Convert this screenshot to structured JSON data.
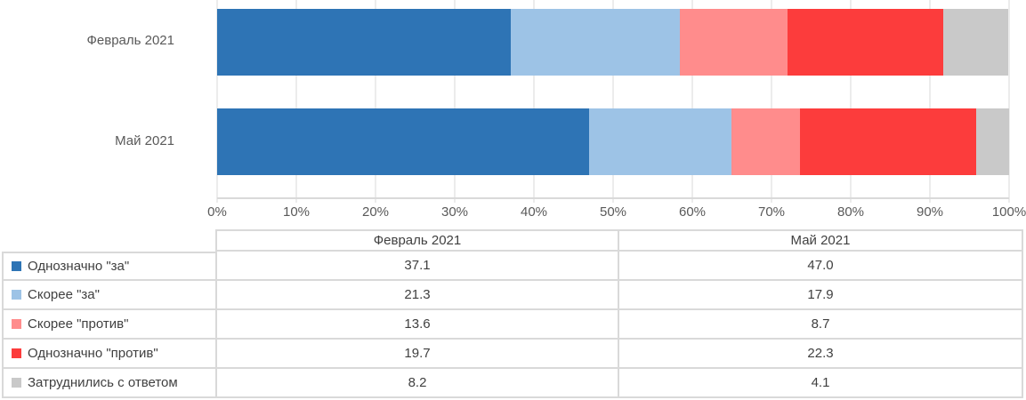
{
  "colors": {
    "background": "#ffffff",
    "grid": "#d9d9d9",
    "axis_text": "#595959",
    "table_text": "#404040",
    "table_border": "#d9d9d9"
  },
  "chart_data": {
    "type": "bar",
    "orientation": "horizontal",
    "stacked": true,
    "grid": true,
    "xlim": [
      0,
      100
    ],
    "x_ticks": [
      "0%",
      "10%",
      "20%",
      "30%",
      "40%",
      "50%",
      "60%",
      "70%",
      "80%",
      "90%",
      "100%"
    ],
    "categories": [
      "Февраль 2021",
      "Май 2021"
    ],
    "series": [
      {
        "name": "Однозначно \"за\"",
        "color": "#2e74b5",
        "values": [
          37.1,
          47.0
        ]
      },
      {
        "name": "Скорее \"за\"",
        "color": "#9dc3e6",
        "values": [
          21.3,
          17.9
        ]
      },
      {
        "name": "Скорее \"против\"",
        "color": "#ff8c8c",
        "values": [
          13.6,
          8.7
        ]
      },
      {
        "name": "Однозначно \"против\"",
        "color": "#fc3c3c",
        "values": [
          19.7,
          22.3
        ]
      },
      {
        "name": "Затруднились с ответом",
        "color": "#c9c9c9",
        "values": [
          8.2,
          4.1
        ]
      }
    ],
    "legend_position": "table-left-column"
  },
  "table": {
    "col_headers": [
      "Февраль 2021",
      "Май 2021"
    ],
    "rows": [
      {
        "label": "Однозначно \"за\"",
        "swatch": "#2e74b5",
        "values": [
          "37.1",
          "47.0"
        ]
      },
      {
        "label": "Скорее \"за\"",
        "swatch": "#9dc3e6",
        "values": [
          "21.3",
          "17.9"
        ]
      },
      {
        "label": "Скорее \"против\"",
        "swatch": "#ff8c8c",
        "values": [
          "13.6",
          "8.7"
        ]
      },
      {
        "label": "Однозначно \"против\"",
        "swatch": "#fc3c3c",
        "values": [
          "19.7",
          "22.3"
        ]
      },
      {
        "label": "Затруднились с ответом",
        "swatch": "#c9c9c9",
        "values": [
          "8.2",
          "4.1"
        ]
      }
    ]
  }
}
